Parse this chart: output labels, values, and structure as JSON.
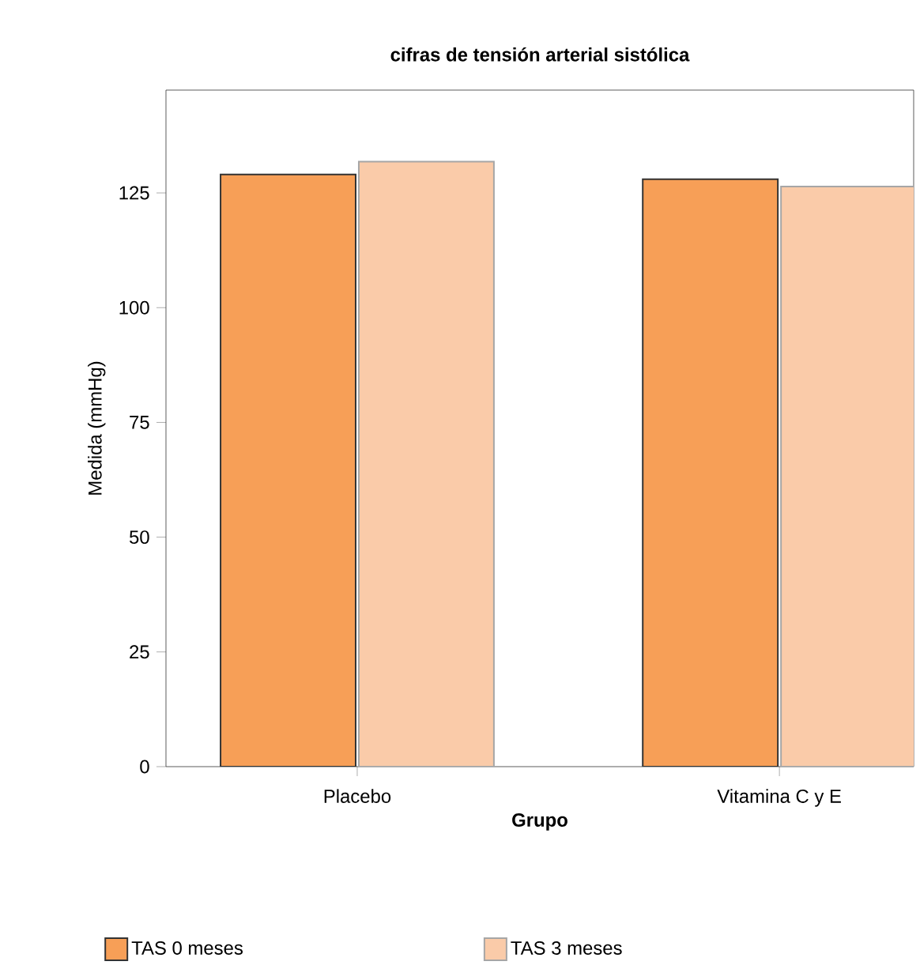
{
  "chart_data": {
    "type": "bar",
    "title": "cifras de tensión arterial sistólica",
    "xlabel": "Grupo",
    "ylabel": "Medida (mmHg)",
    "categories": [
      "Placebo",
      "Vitamina C y E"
    ],
    "series": [
      {
        "name": "TAS 0 meses",
        "color": "#f79f57",
        "values": [
          129,
          128
        ]
      },
      {
        "name": "TAS 3 meses",
        "color": "#facba9",
        "values": [
          131.8,
          126.4
        ]
      }
    ],
    "ylim": [
      0,
      147.4
    ],
    "yticks": [
      0,
      25,
      50,
      75,
      100,
      125
    ],
    "grid": false,
    "legend": "bottom"
  }
}
